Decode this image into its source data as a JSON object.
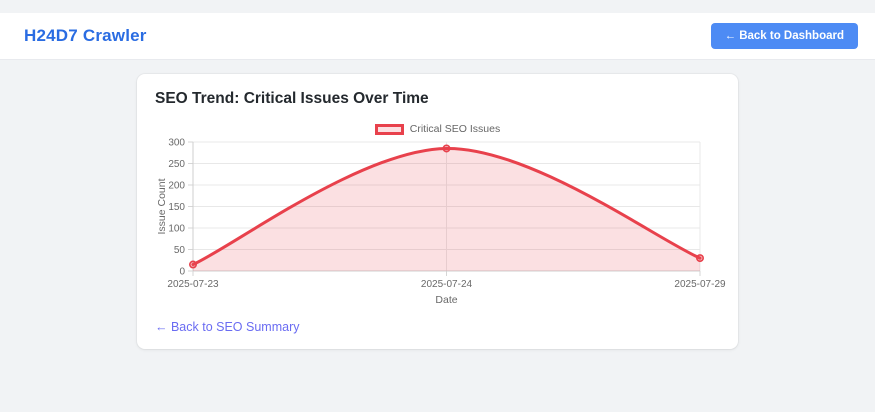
{
  "header": {
    "title": "H24D7 Crawler",
    "back_button": "← Back to Dashboard"
  },
  "card": {
    "title": "SEO Trend: Critical Issues Over Time",
    "back_link": "← Back to SEO Summary"
  },
  "colors": {
    "accent_blue": "#2a6ce2",
    "button_blue": "#4d8bf4",
    "link_indigo": "#6a6cf2",
    "line_red": "#e8414c"
  },
  "chart_data": {
    "type": "line",
    "title": "",
    "categories": [
      "2025-07-23",
      "2025-07-24",
      "2025-07-29"
    ],
    "series": [
      {
        "name": "Critical SEO Issues",
        "values": [
          15,
          285,
          30
        ]
      }
    ],
    "xlabel": "Date",
    "ylabel": "Issue Count",
    "ylim": [
      0,
      300
    ],
    "ytick_step": 50,
    "grid": true,
    "legend_position": "top",
    "line_color": "#e8414c",
    "fill_color": "rgba(232,65,76,0.16)",
    "point_fill": "rgba(232,65,76,0.35)"
  }
}
